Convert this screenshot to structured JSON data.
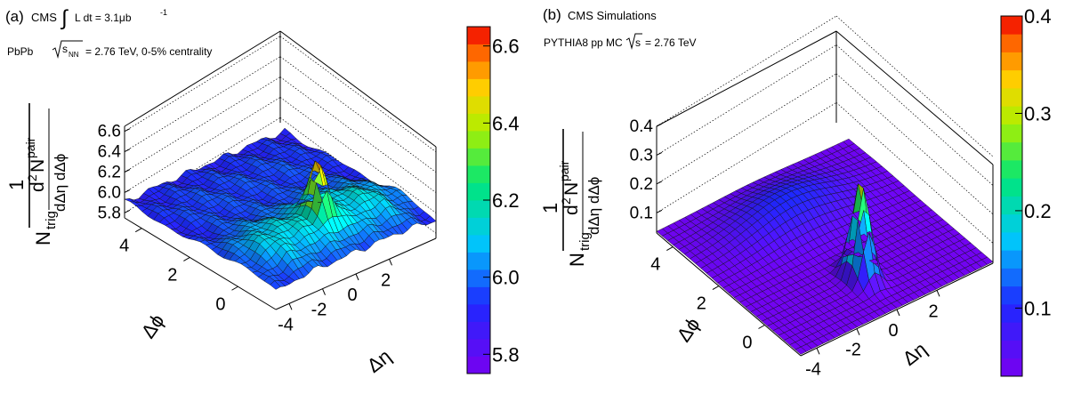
{
  "figure": {
    "panels": [
      {
        "id": "a",
        "tag": "(a)",
        "header_lines": [
          "CMS",
          "L dt = 3.1μb",
          "-1",
          "PbPb",
          "s",
          "NN",
          "= 2.76 TeV, 0-5% centrality"
        ],
        "z_ticks": [
          "5.8",
          "6.0",
          "6.2",
          "6.4",
          "6.6"
        ],
        "phi_ticks": [
          "0",
          "2",
          "4"
        ],
        "eta_ticks": [
          "-4",
          "-2",
          "0",
          "2"
        ],
        "colorbar_ticks": [
          "5.8",
          "6.0",
          "6.2",
          "6.4",
          "6.6"
        ]
      },
      {
        "id": "b",
        "tag": "(b)",
        "header_lines": [
          "CMS Simulations",
          "PYTHIA8 pp MC",
          "s",
          "= 2.76 TeV"
        ],
        "z_ticks": [
          "0.1",
          "0.2",
          "0.3",
          "0.4"
        ],
        "phi_ticks": [
          "0",
          "2",
          "4"
        ],
        "eta_ticks": [
          "-4",
          "-2",
          "0",
          "2"
        ],
        "colorbar_ticks": [
          "0.1",
          "0.2",
          "0.3",
          "0.4"
        ]
      }
    ],
    "axis_titles": {
      "z_one": "1",
      "z_ntrig": "N",
      "z_trig_sub": "trig",
      "z_d2n": "d",
      "z_sq": "2",
      "z_npair": "N",
      "z_pair_sup": "pair",
      "z_denom": "dΔη dΔϕ",
      "phi": "Δϕ",
      "eta": "Δη"
    }
  },
  "chart_data": [
    {
      "type": "heatmap",
      "title": "(a) CMS ∫ L dt = 3.1μb-1, PbPb √sNN = 2.76 TeV, 0-5% centrality",
      "render": "3d-surface",
      "xlabel": "Δη",
      "ylabel": "Δϕ",
      "zlabel": "1/Ntrig d2Npair/dΔη dΔϕ",
      "xlim": [
        -4.8,
        4.8
      ],
      "ylim": [
        -1.57,
        4.71
      ],
      "zlim": [
        5.75,
        6.65
      ],
      "colorbar_range": [
        5.75,
        6.65
      ],
      "model": {
        "baseline": 5.9,
        "near_side_ridge": 0.23,
        "ridge_phi_width": 1.0,
        "away_side_ridge": 0.06,
        "near_side_peak": 0.5,
        "peak_width": 0.35,
        "eta_falloff": 0.2
      }
    },
    {
      "type": "heatmap",
      "title": "(b) CMS Simulations, PYTHIA8 pp MC √s = 2.76 TeV",
      "render": "3d-surface",
      "xlabel": "Δη",
      "ylabel": "Δϕ",
      "zlabel": "1/Ntrig d2Npair/dΔη dΔϕ",
      "xlim": [
        -4.8,
        4.8
      ],
      "ylim": [
        -1.57,
        4.71
      ],
      "zlim": [
        0.03,
        0.4
      ],
      "colorbar_range": [
        0.03,
        0.4
      ],
      "model": {
        "baseline": 0.035,
        "away_side_ridge": 0.07,
        "ridge_phi_width": 0.8,
        "near_side_peak": 0.34,
        "peak_width": 0.32,
        "eta_falloff": 0.25
      }
    }
  ]
}
